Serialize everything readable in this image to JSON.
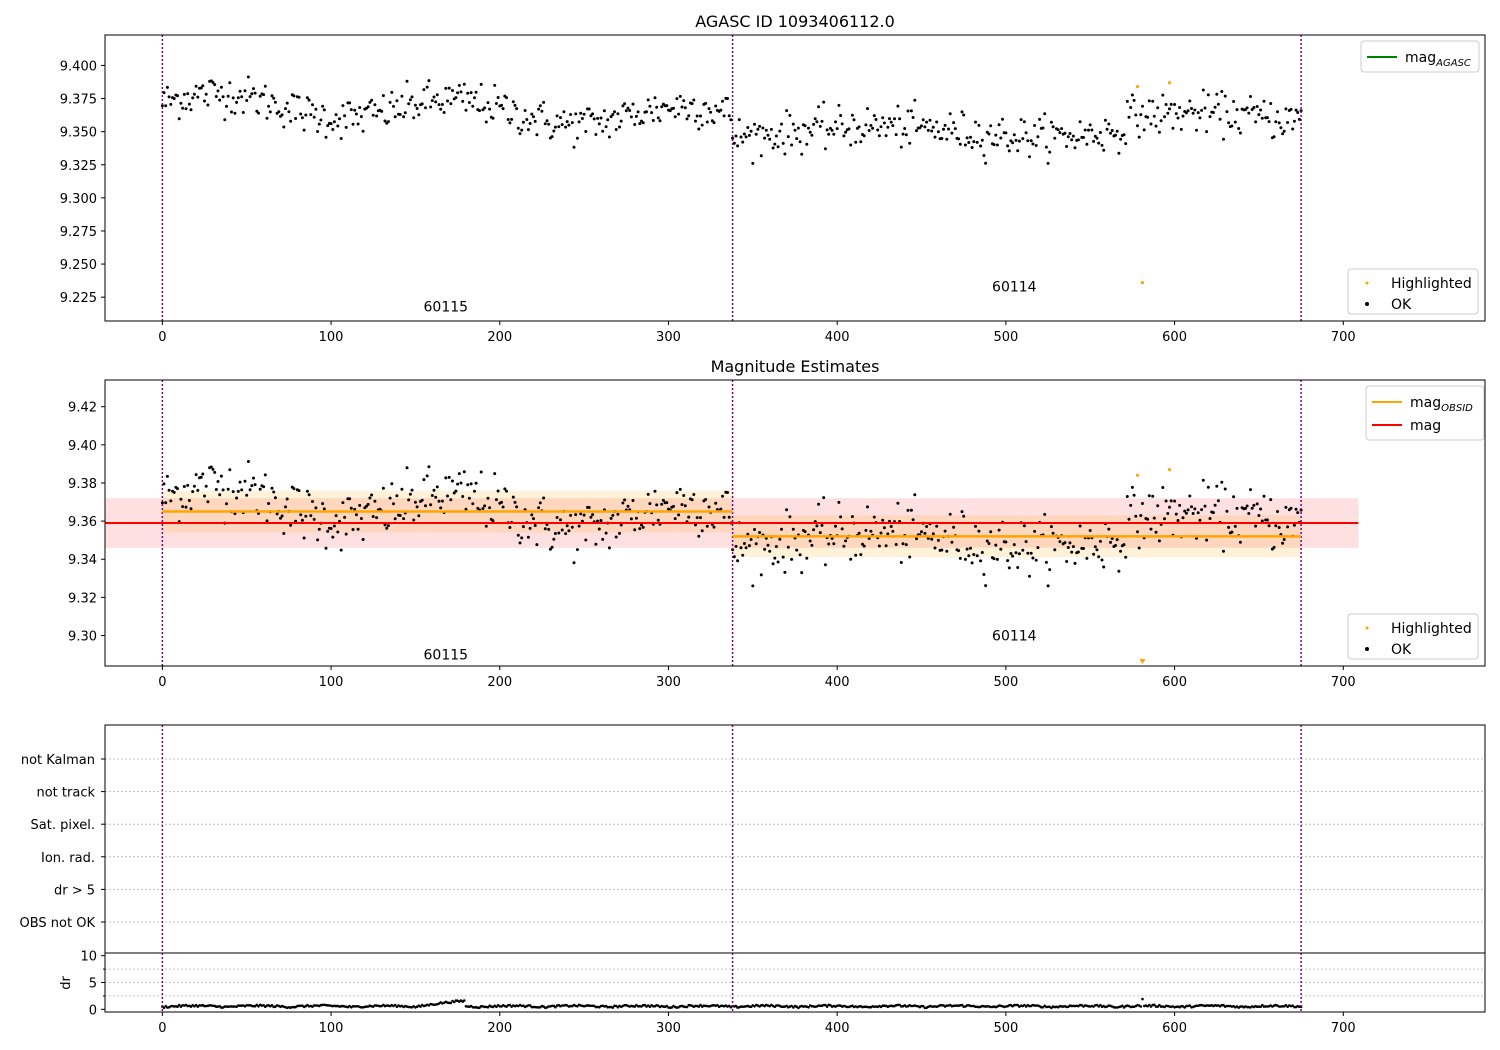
{
  "chart_data": [
    {
      "type": "scatter",
      "title": "AGASC ID 1093406112.0",
      "xlim": [
        -34,
        784
      ],
      "ylim": [
        9.207,
        9.423
      ],
      "xticks": [
        0,
        100,
        200,
        300,
        400,
        500,
        600,
        700
      ],
      "yticks": [
        9.225,
        9.25,
        9.275,
        9.3,
        9.325,
        9.35,
        9.375,
        9.4
      ],
      "ytick_labels": [
        "9.225",
        "9.250",
        "9.275",
        "9.300",
        "9.325",
        "9.350",
        "9.375",
        "9.400"
      ],
      "obsid_boundaries": [
        0,
        338,
        675
      ],
      "obsid_labels": [
        {
          "text": "60115",
          "x": 168,
          "y": 9.218
        },
        {
          "text": "60114",
          "x": 505,
          "y": 9.233
        }
      ],
      "legend_lines": [
        {
          "label": "mag",
          "sub": "AGASC",
          "color": "#008000"
        }
      ],
      "legend_points": [
        {
          "label": "Highlighted",
          "color": "#ffa500"
        },
        {
          "label": "OK",
          "color": "#000000"
        }
      ],
      "highlighted": [
        [
          578,
          9.384
        ],
        [
          597,
          9.387
        ],
        [
          581,
          9.236
        ]
      ],
      "ok_points": "mag"
    },
    {
      "type": "scatter",
      "title": "Magnitude Estimates",
      "xlim": [
        -34,
        784
      ],
      "ylim": [
        9.284,
        9.434
      ],
      "xticks": [
        0,
        100,
        200,
        300,
        400,
        500,
        600,
        700
      ],
      "yticks": [
        9.3,
        9.32,
        9.34,
        9.36,
        9.38,
        9.4,
        9.42
      ],
      "ytick_labels": [
        "9.30",
        "9.32",
        "9.34",
        "9.36",
        "9.38",
        "9.40",
        "9.42"
      ],
      "obsid_boundaries": [
        0,
        338,
        675
      ],
      "obsid_labels": [
        {
          "text": "60115",
          "x": 168,
          "y": 9.29
        },
        {
          "text": "60114",
          "x": 505,
          "y": 9.3
        }
      ],
      "mag_obsid": [
        {
          "x0": 0,
          "x1": 338,
          "y": 9.365,
          "err": 0.011
        },
        {
          "x0": 338,
          "x1": 675,
          "y": 9.352,
          "err": 0.011
        }
      ],
      "mag": {
        "x0": -34,
        "x1": 709,
        "y": 9.359,
        "err": 0.013
      },
      "legend_lines": [
        {
          "label": "mag",
          "sub": "OBSID",
          "color": "#ffa500"
        },
        {
          "label": "mag",
          "sub": "",
          "color": "#ff0000"
        }
      ],
      "legend_points": [
        {
          "label": "Highlighted",
          "color": "#ffa500"
        },
        {
          "label": "OK",
          "color": "#000000"
        }
      ],
      "highlighted": [
        [
          578,
          9.384
        ],
        [
          597,
          9.387
        ]
      ],
      "ok_points": "mag"
    },
    {
      "type": "scatter",
      "xlim": [
        -34,
        784
      ],
      "categories": [
        "OBS not OK",
        "dr > 5",
        "Ion. rad.",
        "Sat. pixel.",
        "not track",
        "not Kalman"
      ],
      "obsid_boundaries": [
        0,
        338,
        675
      ]
    },
    {
      "type": "scatter",
      "ylabel": "dr",
      "xlim": [
        -34,
        784
      ],
      "ylim": [
        -0.5,
        10.5
      ],
      "yticks": [
        0,
        5,
        10
      ],
      "ytick_labels": [
        "0",
        "5",
        "10"
      ],
      "xticks": [
        0,
        100,
        200,
        300,
        400,
        500,
        600,
        700
      ],
      "obsid_boundaries": [
        0,
        338,
        675
      ],
      "dr_typical": 0.5
    }
  ],
  "colors": {
    "boundary": "#800080",
    "ok": "#000000",
    "highlighted": "#ffa500",
    "mag_obsid": "#ffa500",
    "mag": "#ff0000",
    "agasc": "#008000",
    "grid": "#b0b0b0"
  }
}
